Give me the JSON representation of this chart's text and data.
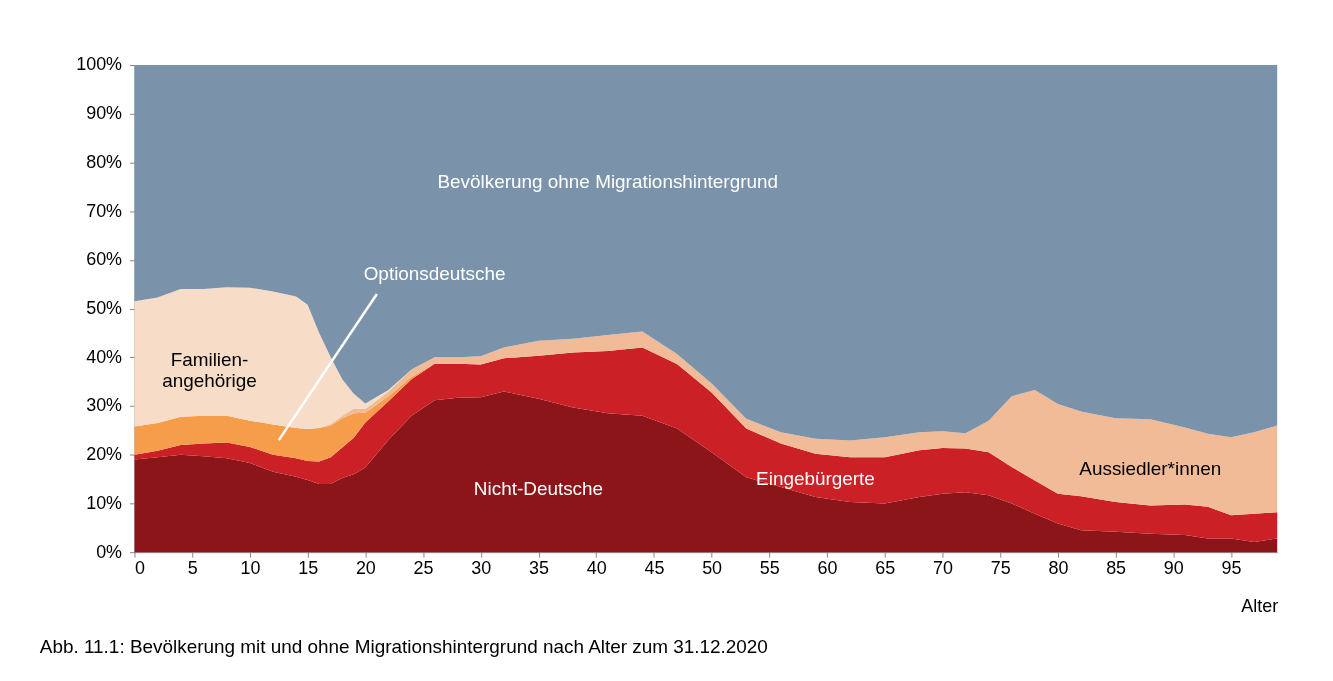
{
  "chart_data": {
    "type": "area",
    "stacked": true,
    "xlabel": "Alter",
    "x": [
      0,
      2,
      4,
      6,
      8,
      10,
      12,
      14,
      15,
      16,
      17,
      18,
      19,
      20,
      22,
      24,
      26,
      28,
      30,
      32,
      35,
      38,
      41,
      44,
      47,
      50,
      53,
      56,
      59,
      62,
      65,
      68,
      70,
      72,
      74,
      76,
      78,
      80,
      82,
      85,
      88,
      91,
      93,
      95,
      97,
      99
    ],
    "series": [
      {
        "name": "Nicht-Deutsche",
        "color": "#8b1519",
        "values": [
          19,
          19.5,
          20,
          19.7,
          19.3,
          18.3,
          16.5,
          15.5,
          14.8,
          14,
          14,
          15.2,
          16,
          17.4,
          23,
          28,
          31.2,
          31.7,
          31.8,
          33,
          31.5,
          29.7,
          28.5,
          28,
          25.4,
          20.5,
          15.4,
          13.4,
          11.3,
          10.3,
          10,
          11.3,
          12,
          12.3,
          11.7,
          10,
          7.9,
          5.9,
          4.5,
          4.2,
          3.8,
          3.5,
          2.8,
          2.8,
          2.1,
          2.8
        ]
      },
      {
        "name": "Eingebürgerte",
        "color": "#cc2027",
        "values": [
          1,
          1.3,
          2,
          2.6,
          3.2,
          3.3,
          3.5,
          3.8,
          3.9,
          4.6,
          5.5,
          6.3,
          7.5,
          9.2,
          8,
          7.5,
          7.5,
          7,
          6.7,
          6.8,
          8.8,
          11.3,
          12.8,
          14,
          13.2,
          12.3,
          10,
          8.9,
          8.9,
          9.2,
          9.5,
          9.6,
          9.4,
          9,
          8.8,
          7.5,
          6.8,
          6.1,
          7,
          6.1,
          5.8,
          6.3,
          6.5,
          4.8,
          5.8,
          5.4
        ]
      },
      {
        "name": "Optionsdeutsche",
        "color": "#f59d4a",
        "values": [
          5.8,
          5.7,
          5.8,
          5.7,
          5.5,
          5.4,
          6.2,
          6.2,
          6.6,
          6.9,
          6.5,
          6,
          5,
          2,
          1,
          0.5,
          0,
          0,
          0,
          0,
          0,
          0,
          0,
          0,
          0,
          0,
          0,
          0,
          0,
          0,
          0,
          0,
          0,
          0,
          0,
          0,
          0,
          0,
          0,
          0,
          0,
          0,
          0,
          0,
          0,
          0
        ]
      },
      {
        "name": "Aussiedler*innen",
        "color": "#f0bb96",
        "values": [
          0,
          0,
          0,
          0,
          0,
          0,
          0,
          0,
          0,
          0,
          0.3,
          0.5,
          1,
          0.8,
          1,
          1.5,
          1.3,
          1.3,
          1.7,
          2.2,
          3.1,
          2.8,
          3.3,
          3.3,
          2.1,
          1.8,
          2,
          2.3,
          3.1,
          3.4,
          4.1,
          3.7,
          3.4,
          3.1,
          6.5,
          14.5,
          18.6,
          18.4,
          17.4,
          17.2,
          17.7,
          15.8,
          15,
          16,
          16.7,
          17.8
        ]
      },
      {
        "name": "Familien-\nangehörige",
        "color": "#f7dcc8",
        "values": [
          25.7,
          25.8,
          26.2,
          26,
          26.4,
          27.3,
          27.3,
          27,
          25.5,
          19.5,
          13.7,
          7.5,
          3,
          1.1,
          0.3,
          0,
          0,
          0,
          0,
          0,
          0,
          0,
          0,
          0,
          0,
          0,
          0,
          0,
          0,
          0,
          0,
          0,
          0,
          0,
          0,
          0,
          0,
          0,
          0,
          0,
          0,
          0,
          0,
          0,
          0,
          0
        ]
      },
      {
        "name": "Bevölkerung ohne Migrationshintergrund",
        "color": "#7b93aa",
        "values": [
          48.5,
          47.7,
          46,
          46,
          45.6,
          45.7,
          46.5,
          47.5,
          49.2,
          55,
          60,
          64.5,
          67.5,
          69.5,
          66.7,
          62.5,
          60,
          60,
          59.8,
          58,
          56.6,
          56.2,
          55.4,
          54.7,
          59.3,
          65.4,
          72.6,
          75.4,
          76.7,
          77.1,
          76.4,
          75.4,
          75.2,
          75.6,
          73,
          68,
          66.7,
          69.6,
          71.1,
          72.5,
          72.7,
          74.4,
          75.7,
          76.4,
          75.4,
          74
        ]
      }
    ],
    "xlim": [
      0,
      99
    ],
    "xticks": [
      0,
      5,
      10,
      15,
      20,
      25,
      30,
      35,
      40,
      45,
      50,
      55,
      60,
      65,
      70,
      75,
      80,
      85,
      90,
      95
    ],
    "ylim": [
      0,
      100
    ],
    "yticks": [
      {
        "value": 0,
        "label": "0%"
      },
      {
        "value": 10,
        "label": "10%"
      },
      {
        "value": 20,
        "label": "20%"
      },
      {
        "value": 30,
        "label": "30%"
      },
      {
        "value": 40,
        "label": "40%"
      },
      {
        "value": 50,
        "label": "50%"
      },
      {
        "value": 60,
        "label": "60%"
      },
      {
        "value": 70,
        "label": "70%"
      },
      {
        "value": 80,
        "label": "80%"
      },
      {
        "value": 90,
        "label": "90%"
      },
      {
        "value": 100,
        "label": "100%"
      }
    ],
    "grid": false,
    "legend": false,
    "annotations": [
      "Abb. 11.1: Bevölkerung mit und ohne Migrationshintergrund nach Alter zum 31.12.2020"
    ]
  }
}
